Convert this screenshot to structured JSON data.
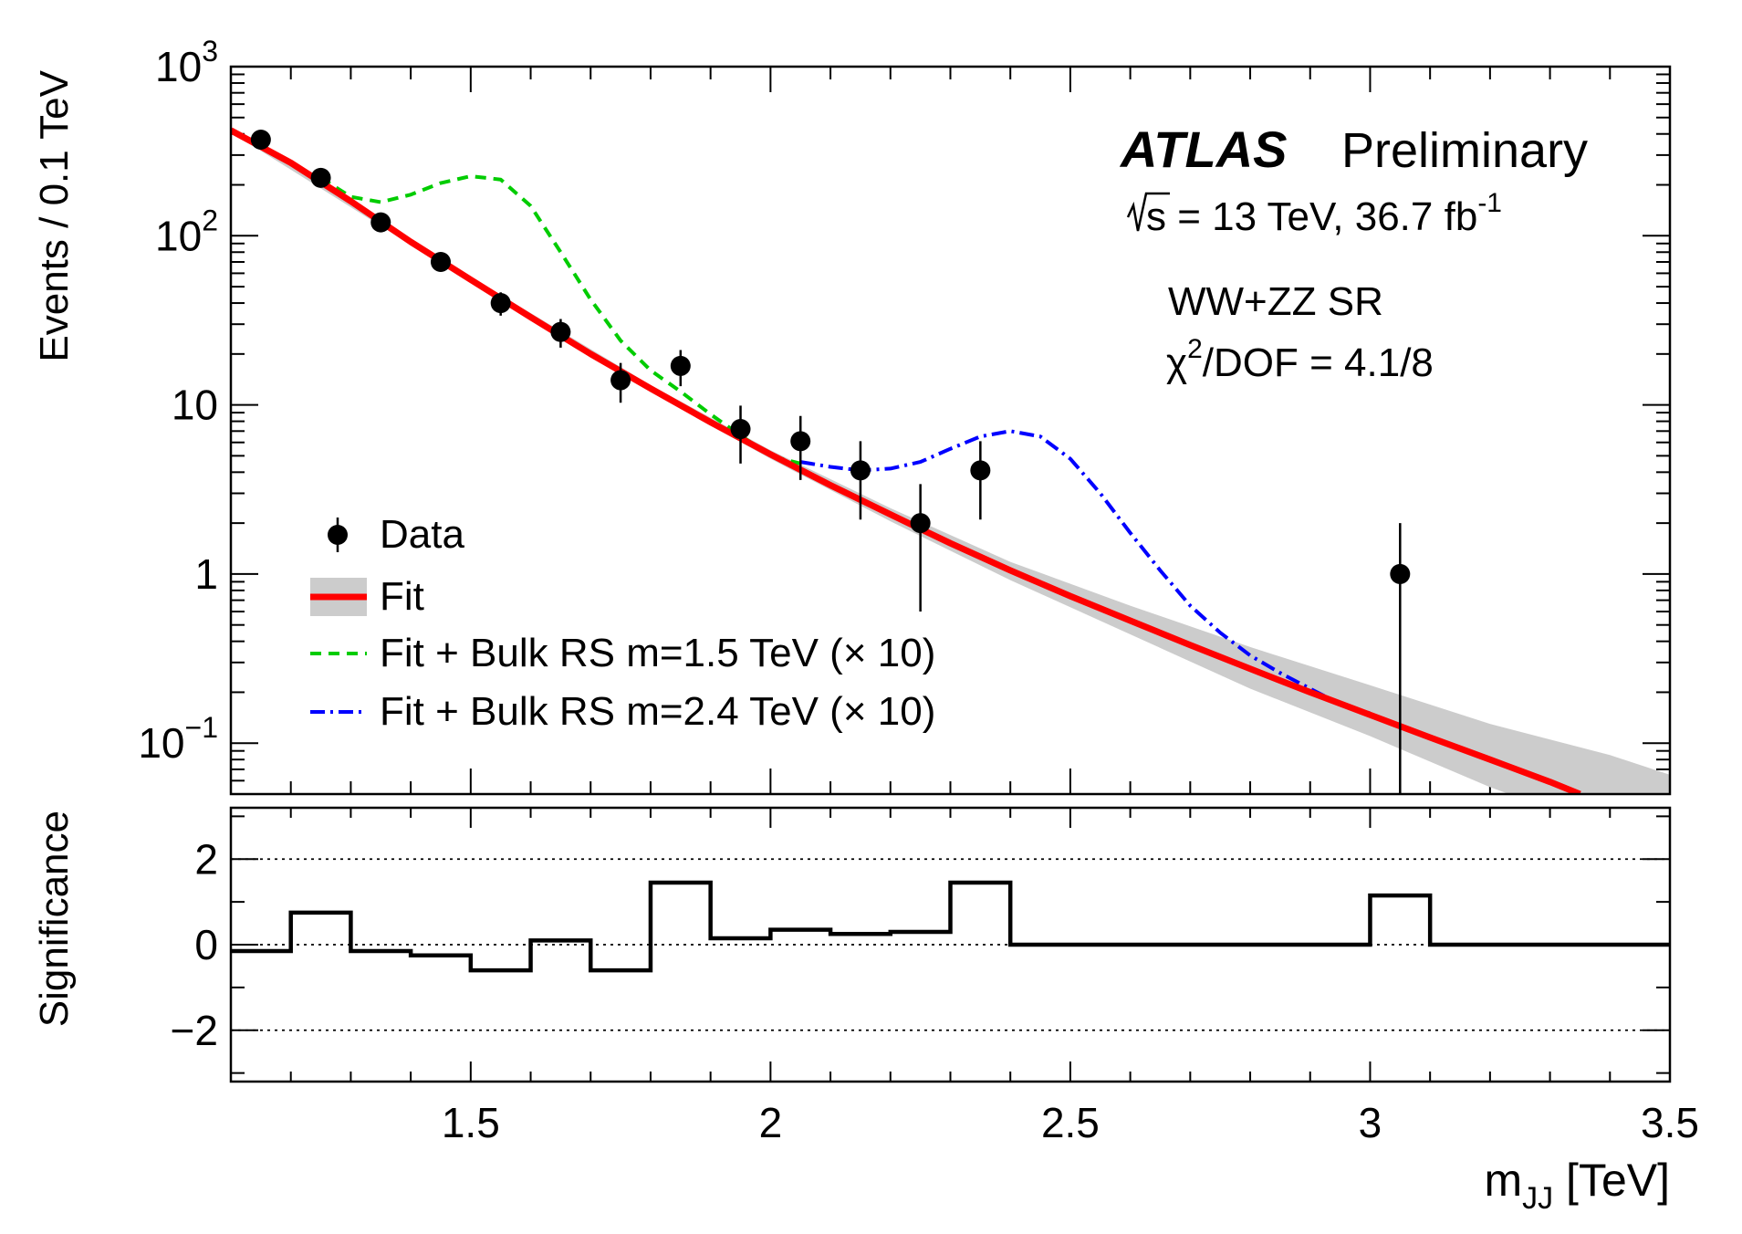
{
  "chart_data": [
    {
      "type": "scatter",
      "panel": "main",
      "ylabel": "Events / 0.1 TeV",
      "yscale": "log",
      "ylim": [
        0.05,
        1000
      ],
      "xlim": [
        1.1,
        3.5
      ],
      "ytick_labels": [
        {
          "value": 0.1,
          "base": "10",
          "exp": "−1"
        },
        {
          "value": 1,
          "base": "1",
          "exp": ""
        },
        {
          "value": 10,
          "base": "10",
          "exp": ""
        },
        {
          "value": 100,
          "base": "10",
          "exp": "2"
        },
        {
          "value": 1000,
          "base": "10",
          "exp": "3"
        }
      ],
      "annotations": {
        "atlas": "ATLAS",
        "preliminary": "Preliminary",
        "energy_prefix": "s",
        "energy_text": " = 13 TeV, 36.7 fb",
        "energy_sup": "-1",
        "region": "WW+ZZ SR",
        "chi_symbol": "χ",
        "chi_sup": "2",
        "chi_text": "/DOF = 4.1/8"
      },
      "legend": {
        "placement": "bottom-left",
        "data_label": "Data",
        "fit_label": "Fit",
        "green_label": "Fit + Bulk RS m=1.5 TeV (× 10)",
        "blue_label": "Fit + Bulk RS m=2.4 TeV (× 10)"
      },
      "series": [
        {
          "name": "Data",
          "kind": "points",
          "x": [
            1.15,
            1.25,
            1.35,
            1.45,
            1.55,
            1.65,
            1.75,
            1.85,
            1.95,
            2.05,
            2.15,
            2.25,
            2.35,
            3.05
          ],
          "y": [
            370,
            220,
            120,
            70,
            40,
            27,
            14,
            17,
            7.2,
            6.1,
            4.1,
            2.0,
            4.1,
            1.0
          ],
          "err_low": [
            19,
            15,
            11,
            8.4,
            6.3,
            5.2,
            3.7,
            4.1,
            2.7,
            2.5,
            2.0,
            1.4,
            2.0,
            1.0
          ],
          "err_high": [
            19,
            15,
            11,
            8.4,
            6.3,
            5.2,
            3.7,
            4.1,
            2.7,
            2.5,
            2.0,
            1.4,
            2.0,
            1.0
          ],
          "color": "#000000"
        },
        {
          "name": "Fit",
          "kind": "line",
          "x": [
            1.1,
            1.2,
            1.3,
            1.4,
            1.5,
            1.6,
            1.7,
            1.8,
            1.9,
            2.0,
            2.1,
            2.2,
            2.3,
            2.4,
            2.5,
            2.6,
            2.7,
            2.8,
            2.9,
            3.0,
            3.1,
            3.2,
            3.3,
            3.35
          ],
          "y": [
            420,
            270,
            160,
            92,
            55,
            33,
            20,
            12.5,
            7.9,
            5.1,
            3.35,
            2.25,
            1.52,
            1.05,
            0.74,
            0.53,
            0.38,
            0.275,
            0.2,
            0.147,
            0.108,
            0.08,
            0.059,
            0.05
          ],
          "color": "#ff0000"
        },
        {
          "name": "Fit uncertainty",
          "kind": "band",
          "x": [
            1.1,
            1.5,
            1.8,
            2.0,
            2.2,
            2.4,
            2.6,
            2.8,
            3.0,
            3.2,
            3.4,
            3.5
          ],
          "low": [
            410,
            53,
            11.9,
            4.8,
            2.05,
            0.92,
            0.44,
            0.21,
            0.11,
            0.055,
            0.03,
            0.024
          ],
          "high": [
            430,
            57,
            13.1,
            5.4,
            2.45,
            1.18,
            0.65,
            0.37,
            0.22,
            0.13,
            0.085,
            0.065
          ],
          "color": "#cccccc"
        },
        {
          "name": "Fit + Bulk RS m=1.5 TeV (× 10)",
          "kind": "line",
          "dash": "dashed",
          "x": [
            1.25,
            1.3,
            1.35,
            1.4,
            1.45,
            1.5,
            1.55,
            1.6,
            1.65,
            1.7,
            1.75,
            1.8,
            1.85,
            1.9,
            1.95,
            2.0,
            2.05
          ],
          "y": [
            220,
            170,
            158,
            175,
            205,
            225,
            215,
            150,
            80,
            42,
            24,
            16,
            12,
            8.8,
            6.6,
            5.0,
            4.5
          ],
          "color": "#00cc00"
        },
        {
          "name": "Fit + Bulk RS m=2.4 TeV (× 10)",
          "kind": "line",
          "dash": "dashdot",
          "x": [
            2.05,
            2.1,
            2.15,
            2.2,
            2.25,
            2.3,
            2.35,
            2.4,
            2.45,
            2.5,
            2.55,
            2.6,
            2.65,
            2.7,
            2.75,
            2.8,
            2.85,
            2.9,
            2.95,
            3.0
          ],
          "y": [
            4.6,
            4.3,
            4.1,
            4.2,
            4.6,
            5.5,
            6.5,
            7.0,
            6.5,
            4.8,
            3.0,
            1.75,
            1.05,
            0.65,
            0.45,
            0.33,
            0.26,
            0.21,
            0.17,
            0.15
          ],
          "color": "#0000ff"
        }
      ]
    },
    {
      "type": "line",
      "panel": "ratio",
      "ylabel": "Significance",
      "xlabel_base": "m",
      "xlabel_sub": "JJ",
      "xlabel_unit": " [TeV]",
      "xlim": [
        1.1,
        3.5
      ],
      "ylim": [
        -3.2,
        3.2
      ],
      "xtick_values": [
        1.5,
        2,
        2.5,
        3,
        3.5
      ],
      "xtick_labels": [
        "1.5",
        "2",
        "2.5",
        "3",
        "3.5"
      ],
      "ytick_values": [
        -2,
        0,
        2
      ],
      "ytick_labels": [
        "−2",
        "0",
        "2"
      ],
      "reference_lines": [
        -2,
        0,
        2
      ],
      "series": [
        {
          "name": "Significance",
          "kind": "step",
          "bin_edges": [
            1.1,
            1.2,
            1.3,
            1.4,
            1.5,
            1.6,
            1.7,
            1.8,
            1.9,
            2.0,
            2.1,
            2.2,
            2.3,
            2.4,
            3.0,
            3.1,
            3.5
          ],
          "values": [
            -0.15,
            0.75,
            -0.15,
            -0.25,
            -0.6,
            0.1,
            -0.6,
            1.45,
            0.15,
            0.35,
            0.25,
            0.3,
            1.45,
            0.0,
            1.15,
            0.0
          ],
          "color": "#000000"
        }
      ]
    }
  ]
}
